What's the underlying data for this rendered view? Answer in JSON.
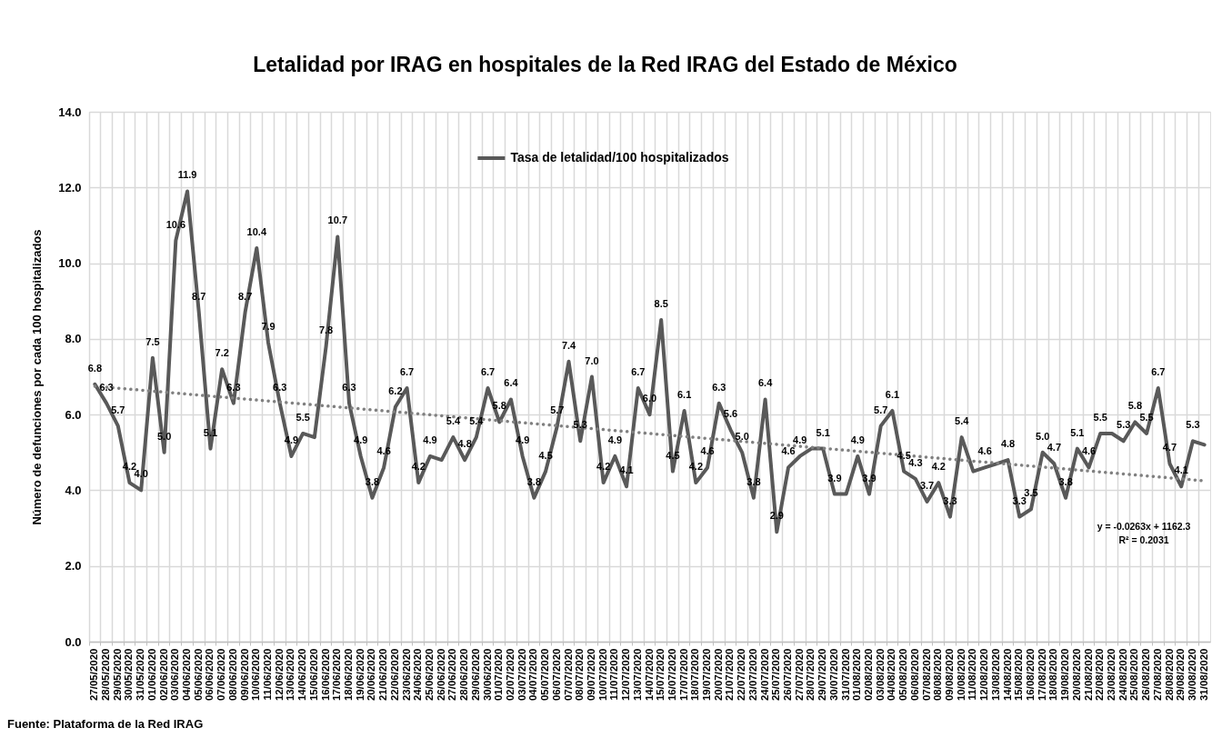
{
  "chart_data": {
    "type": "line",
    "title": "Letalidad por IRAG en hospitales de la Red IRAG del Estado de México",
    "ylabel": "Número de defunciones por cada 100 hospitalizados",
    "categories": [
      "27/05/2020",
      "28/05/2020",
      "29/05/2020",
      "30/05/2020",
      "31/05/2020",
      "01/06/2020",
      "02/06/2020",
      "03/06/2020",
      "04/06/2020",
      "05/06/2020",
      "06/06/2020",
      "07/06/2020",
      "08/06/2020",
      "09/06/2020",
      "10/06/2020",
      "11/06/2020",
      "12/06/2020",
      "13/06/2020",
      "14/06/2020",
      "15/06/2020",
      "16/06/2020",
      "17/06/2020",
      "18/06/2020",
      "19/06/2020",
      "20/06/2020",
      "21/06/2020",
      "22/06/2020",
      "23/06/2020",
      "24/06/2020",
      "25/06/2020",
      "26/06/2020",
      "27/06/2020",
      "28/06/2020",
      "29/06/2020",
      "30/06/2020",
      "01/07/2020",
      "02/07/2020",
      "03/07/2020",
      "04/07/2020",
      "05/07/2020",
      "06/07/2020",
      "07/07/2020",
      "08/07/2020",
      "09/07/2020",
      "10/07/2020",
      "11/07/2020",
      "12/07/2020",
      "13/07/2020",
      "14/07/2020",
      "15/07/2020",
      "16/07/2020",
      "17/07/2020",
      "18/07/2020",
      "19/07/2020",
      "20/07/2020",
      "21/07/2020",
      "22/07/2020",
      "23/07/2020",
      "24/07/2020",
      "25/07/2020",
      "26/07/2020",
      "27/07/2020",
      "28/07/2020",
      "29/07/2020",
      "30/07/2020",
      "31/07/2020",
      "01/08/2020",
      "02/08/2020",
      "03/08/2020",
      "04/08/2020",
      "05/08/2020",
      "06/08/2020",
      "07/08/2020",
      "08/08/2020",
      "09/08/2020",
      "10/08/2020",
      "11/08/2020",
      "12/08/2020",
      "13/08/2020",
      "14/08/2020",
      "15/08/2020",
      "16/08/2020",
      "17/08/2020",
      "18/08/2020",
      "19/08/2020",
      "20/08/2020",
      "21/08/2020",
      "22/08/2020",
      "23/08/2020",
      "24/08/2020",
      "25/08/2020",
      "26/08/2020",
      "27/08/2020",
      "28/08/2020",
      "29/08/2020",
      "30/08/2020",
      "31/08/2020"
    ],
    "series": [
      {
        "name": "Tasa de letalidad/100 hospitalizados",
        "color": "#595959",
        "values": [
          6.8,
          6.3,
          5.7,
          4.2,
          4.0,
          7.5,
          5.0,
          10.6,
          11.9,
          8.7,
          5.1,
          7.2,
          6.3,
          8.7,
          10.4,
          7.9,
          6.3,
          4.9,
          5.5,
          5.4,
          7.8,
          10.7,
          6.3,
          4.9,
          3.8,
          4.6,
          6.2,
          6.7,
          4.2,
          4.9,
          4.8,
          5.4,
          4.8,
          5.4,
          6.7,
          5.8,
          6.4,
          4.9,
          3.8,
          4.5,
          5.7,
          7.4,
          5.3,
          7.0,
          4.2,
          4.9,
          4.1,
          6.7,
          6.0,
          8.5,
          4.5,
          6.1,
          4.2,
          4.6,
          6.3,
          5.6,
          5.0,
          3.8,
          6.4,
          2.9,
          4.6,
          4.9,
          5.1,
          5.1,
          3.9,
          3.9,
          4.9,
          3.9,
          5.7,
          6.1,
          4.5,
          4.3,
          3.7,
          4.2,
          3.3,
          5.4,
          4.5,
          4.6,
          4.7,
          4.8,
          3.3,
          3.5,
          5.0,
          4.7,
          3.8,
          5.1,
          4.6,
          5.5,
          5.5,
          5.3,
          5.8,
          5.5,
          6.7,
          4.7,
          4.1,
          5.3,
          5.2
        ],
        "value_labels": [
          "6.8",
          "6.3",
          "5.7",
          "4.2",
          "4.0",
          "7.5",
          "5.0",
          "10.6",
          "11.9",
          "8.7",
          "5.1",
          "7.2",
          "6.3",
          "8.7",
          "10.4",
          "7.9",
          "6.3",
          "4.9",
          "5.5",
          null,
          "7.8",
          "10.7",
          "6.3",
          "4.9",
          "3.8",
          "4.6",
          "6.2",
          "6.7",
          "4.2",
          "4.9",
          null,
          "5.4",
          "4.8",
          "5.4",
          "6.7",
          "5.8",
          "6.4",
          "4.9",
          "3.8",
          "4.5",
          "5.7",
          "7.4",
          "5.3",
          "7.0",
          "4.2",
          "4.9",
          "4.1",
          "6.7",
          "6.0",
          "8.5",
          "4.5",
          "6.1",
          "4.2",
          "4.6",
          "6.3",
          "5.6",
          "5.0",
          "3.8",
          "6.4",
          "2.9",
          "4.6",
          "4.9",
          null,
          "5.1",
          "3.9",
          null,
          "4.9",
          "3.9",
          "5.7",
          "6.1",
          "4.5",
          "4.3",
          "3.7",
          "4.2",
          "3.3",
          "5.4",
          null,
          "4.6",
          null,
          "4.8",
          "3.3",
          "3.5",
          "5.0",
          "4.7",
          "3.8",
          "5.1",
          "4.6",
          "5.5",
          null,
          "5.3",
          "5.8",
          "5.5",
          "6.7",
          "4.7",
          "4.1",
          "5.3",
          null
        ]
      },
      {
        "type": "line",
        "color": "#808080",
        "line_style": "dotted",
        "x": [
          "27/05/2020",
          "31/08/2020"
        ],
        "values": [
          6.75,
          4.25
        ]
      }
    ],
    "ylim": [
      0,
      14
    ],
    "yticks": [
      {
        "value": 0,
        "label": "0.0"
      },
      {
        "value": 2,
        "label": "2.0"
      },
      {
        "value": 4,
        "label": "4.0"
      },
      {
        "value": 6,
        "label": "6.0"
      },
      {
        "value": 8,
        "label": "8.0"
      },
      {
        "value": 10,
        "label": "10.0"
      },
      {
        "value": 12,
        "label": "12.0"
      },
      {
        "value": 14,
        "label": "14.0"
      }
    ],
    "grid": true,
    "legend": "top",
    "annotations": [
      "y = -0.0263x + 1162.3",
      "R² = 0.2031",
      "Fuente: Plataforma de la Red IRAG"
    ]
  }
}
